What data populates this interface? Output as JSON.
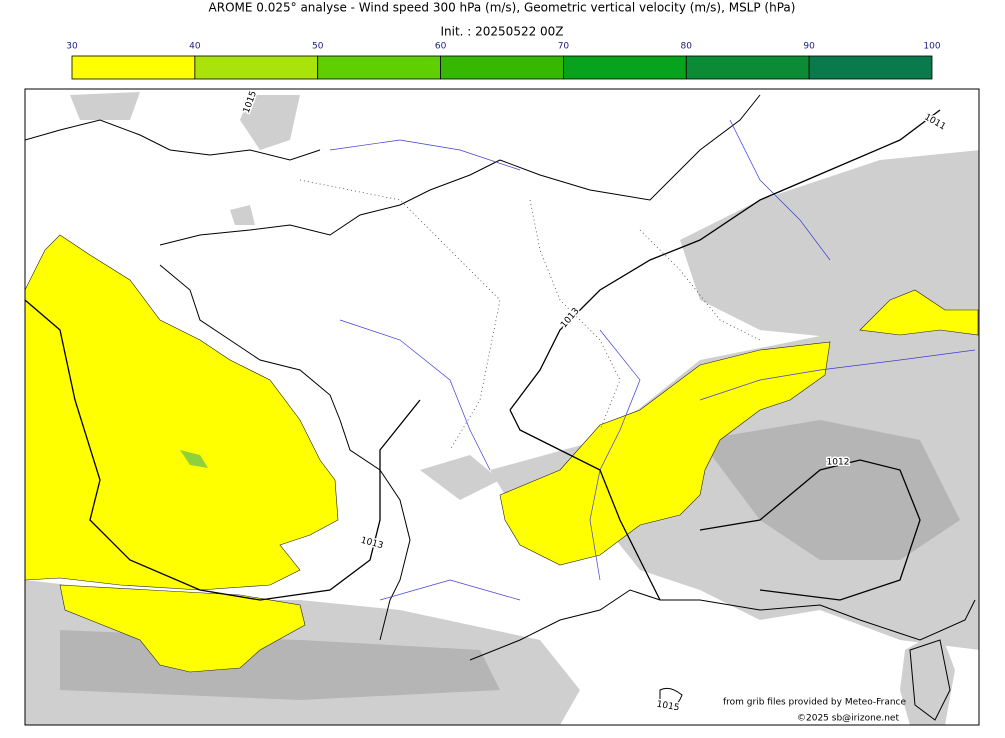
{
  "title": "AROME 0.025° analyse - Wind speed 300 hPa (m/s), Geometric vertical velocity (m/s), MSLP (hPa)",
  "subtitle": "Init. : 20250522 00Z",
  "colorbar": {
    "ticks": [
      30,
      40,
      50,
      60,
      70,
      80,
      90,
      100
    ],
    "colors": [
      "#ffff00",
      "#a9e30b",
      "#5fcf00",
      "#36b700",
      "#08a31c",
      "#0b8b36",
      "#0a7a4c"
    ]
  },
  "contour_labels": [
    "1015",
    "1011",
    "1013",
    "1012",
    "1013",
    "1015"
  ],
  "credits": [
    "from grib files provided by Meteo-France",
    "©2025 sb@irizone.net"
  ]
}
